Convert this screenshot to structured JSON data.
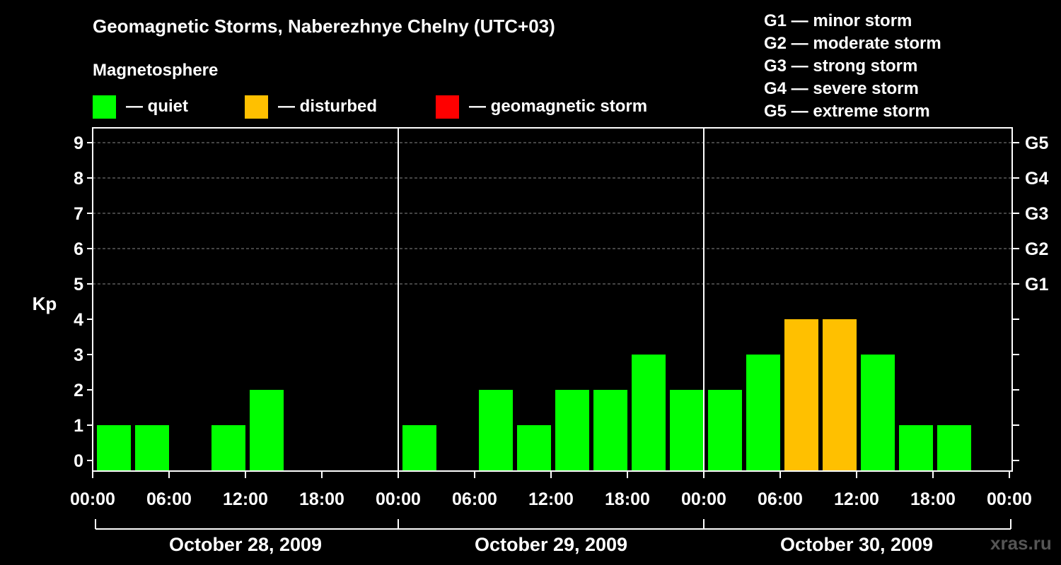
{
  "title": "Geomagnetic Storms, Naberezhnye Chelny (UTC+03)",
  "subtitle": "Magnetosphere",
  "legend": [
    {
      "label": "— quiet",
      "color": "#00ff00"
    },
    {
      "label": "— disturbed",
      "color": "#ffc000"
    },
    {
      "label": "— geomagnetic storm",
      "color": "#ff0000"
    }
  ],
  "g_scale": [
    "G1 — minor storm",
    "G2 — moderate storm",
    "G3 — strong storm",
    "G4 — severe storm",
    "G5 — extreme storm"
  ],
  "watermark": "xras.ru",
  "chart_data": {
    "type": "bar",
    "ylabel": "Kp",
    "ylim": [
      0,
      9
    ],
    "yticks": [
      "0",
      "1",
      "2",
      "3",
      "4",
      "5",
      "6",
      "7",
      "8",
      "9"
    ],
    "right_ticks": [
      {
        "kp": 5,
        "label": "G1"
      },
      {
        "kp": 6,
        "label": "G2"
      },
      {
        "kp": 7,
        "label": "G3"
      },
      {
        "kp": 8,
        "label": "G4"
      },
      {
        "kp": 9,
        "label": "G5"
      }
    ],
    "grid": "dashed at Kp 5–9",
    "xticks": [
      "00:00",
      "06:00",
      "12:00",
      "18:00",
      "00:00",
      "06:00",
      "12:00",
      "18:00",
      "00:00",
      "06:00",
      "12:00",
      "18:00",
      "00:00"
    ],
    "days": [
      "October 28, 2009",
      "October 29, 2009",
      "October 30, 2009"
    ],
    "interval_hours": 3,
    "colors": {
      "quiet": "#00ff00",
      "disturbed": "#ffc000",
      "storm": "#ff0000"
    },
    "series": [
      {
        "day": "October 28, 2009",
        "values": [
          1,
          1,
          0,
          1,
          2,
          0,
          0,
          0
        ]
      },
      {
        "day": "October 29, 2009",
        "values": [
          1,
          0,
          2,
          1,
          2,
          2,
          3,
          2
        ]
      },
      {
        "day": "October 30, 2009",
        "values": [
          2,
          3,
          4,
          4,
          3,
          1,
          1,
          0
        ]
      }
    ]
  }
}
